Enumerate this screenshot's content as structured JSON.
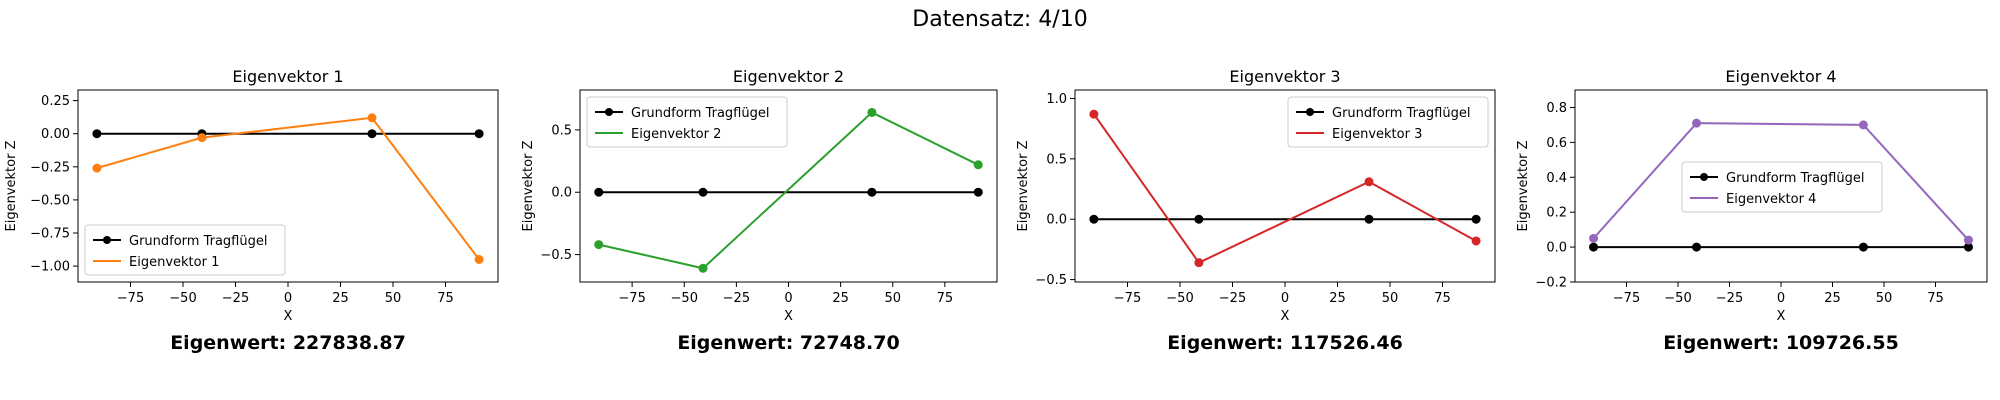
{
  "suptitle": "Datensatz: 4/10",
  "colors": {
    "base": "#000000",
    "series": [
      "#ff7f0e",
      "#2ca02c",
      "#d62728",
      "#9467bd"
    ]
  },
  "chart_data": [
    {
      "type": "line",
      "title": "Eigenvektor 1",
      "xlabel": "X",
      "ylabel": "Eigenvektor Z",
      "xlim": [
        -100,
        100
      ],
      "ylim": [
        -1.12,
        0.33
      ],
      "xticks": [
        -75,
        -50,
        -25,
        0,
        25,
        50,
        75
      ],
      "xtick_labels": [
        "−75",
        "−50",
        "−25",
        "0",
        "25",
        "50",
        "75"
      ],
      "yticks": [
        -1.0,
        -0.75,
        -0.5,
        -0.25,
        0.0,
        0.25
      ],
      "ytick_labels": [
        "−1.00",
        "−0.75",
        "−0.50",
        "−0.25",
        "0.00",
        "0.25"
      ],
      "legend_loc": "lower-left",
      "series": [
        {
          "name": "Grundform Tragflügel",
          "color": "#000000",
          "x": [
            -91,
            -41,
            40,
            91
          ],
          "y": [
            0,
            0,
            0,
            0
          ]
        },
        {
          "name": "Eigenvektor 1",
          "color": "#ff7f0e",
          "x": [
            -91,
            -41,
            40,
            91
          ],
          "y": [
            -0.26,
            -0.03,
            0.12,
            -0.95
          ]
        }
      ],
      "eigenvalue_label": "Eigenwert: 227838.87"
    },
    {
      "type": "line",
      "title": "Eigenvektor 2",
      "xlabel": "X",
      "ylabel": "Eigenvektor Z",
      "xlim": [
        -100,
        100
      ],
      "ylim": [
        -0.72,
        0.82
      ],
      "xticks": [
        -75,
        -50,
        -25,
        0,
        25,
        50,
        75
      ],
      "xtick_labels": [
        "−75",
        "−50",
        "−25",
        "0",
        "25",
        "50",
        "75"
      ],
      "yticks": [
        -0.5,
        0.0,
        0.5
      ],
      "ytick_labels": [
        "−0.5",
        "0.0",
        "0.5"
      ],
      "legend_loc": "upper-left",
      "series": [
        {
          "name": "Grundform Tragflügel",
          "color": "#000000",
          "x": [
            -91,
            -41,
            40,
            91
          ],
          "y": [
            0,
            0,
            0,
            0
          ]
        },
        {
          "name": "Eigenvektor 2",
          "color": "#2ca02c",
          "x": [
            -91,
            -41,
            40,
            91
          ],
          "y": [
            -0.42,
            -0.61,
            0.64,
            0.22
          ]
        }
      ],
      "eigenvalue_label": "Eigenwert: 72748.70"
    },
    {
      "type": "line",
      "title": "Eigenvektor 3",
      "xlabel": "X",
      "ylabel": "Eigenvektor Z",
      "xlim": [
        -100,
        100
      ],
      "ylim": [
        -0.52,
        1.07
      ],
      "xticks": [
        -75,
        -50,
        -25,
        0,
        25,
        50,
        75
      ],
      "xtick_labels": [
        "−75",
        "−50",
        "−25",
        "0",
        "25",
        "50",
        "75"
      ],
      "yticks": [
        -0.5,
        0.0,
        0.5,
        1.0
      ],
      "ytick_labels": [
        "−0.5",
        "0.0",
        "0.5",
        "1.0"
      ],
      "legend_loc": "upper-right",
      "series": [
        {
          "name": "Grundform Tragflügel",
          "color": "#000000",
          "x": [
            -91,
            -41,
            40,
            91
          ],
          "y": [
            0,
            0,
            0,
            0
          ]
        },
        {
          "name": "Eigenvektor 3",
          "color": "#d62728",
          "x": [
            -91,
            -41,
            40,
            91
          ],
          "y": [
            0.87,
            -0.36,
            0.31,
            -0.18
          ]
        }
      ],
      "eigenvalue_label": "Eigenwert: 117526.46"
    },
    {
      "type": "line",
      "title": "Eigenvektor 4",
      "xlabel": "X",
      "ylabel": "Eigenvektor Z",
      "xlim": [
        -100,
        100
      ],
      "ylim": [
        -0.2,
        0.9
      ],
      "xticks": [
        -75,
        -50,
        -25,
        0,
        25,
        50,
        75
      ],
      "xtick_labels": [
        "−75",
        "−50",
        "−25",
        "0",
        "25",
        "50",
        "75"
      ],
      "yticks": [
        -0.2,
        0.0,
        0.2,
        0.4,
        0.6,
        0.8
      ],
      "ytick_labels": [
        "−0.2",
        "0.0",
        "0.2",
        "0.4",
        "0.6",
        "0.8"
      ],
      "legend_loc": "center",
      "series": [
        {
          "name": "Grundform Tragflügel",
          "color": "#000000",
          "x": [
            -91,
            -41,
            40,
            91
          ],
          "y": [
            0,
            0,
            0,
            0
          ]
        },
        {
          "name": "Eigenvektor 4",
          "color": "#9467bd",
          "x": [
            -91,
            -41,
            40,
            91
          ],
          "y": [
            0.05,
            0.71,
            0.7,
            0.04
          ]
        }
      ],
      "eigenvalue_label": "Eigenwert: 109726.55"
    }
  ]
}
